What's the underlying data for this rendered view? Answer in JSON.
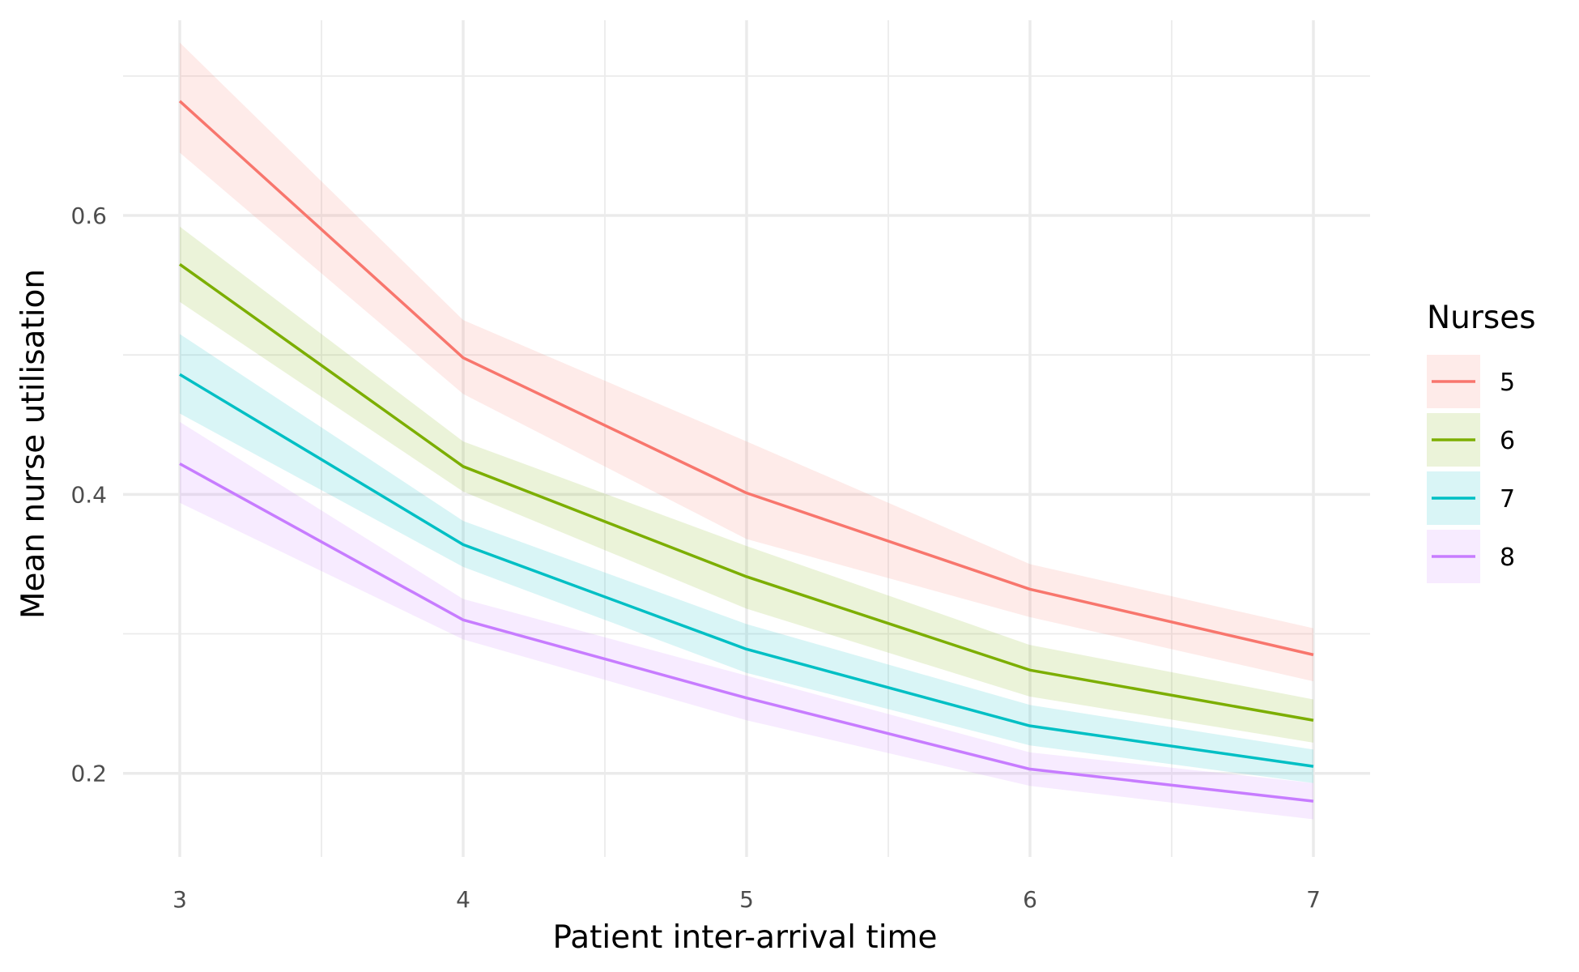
{
  "chart_data": {
    "type": "line",
    "title": "",
    "xlabel": "Patient inter-arrival time",
    "ylabel": "Mean nurse utilisation",
    "x": [
      3,
      4,
      5,
      6,
      7
    ],
    "xticks": [
      3,
      4,
      5,
      6,
      7
    ],
    "yticks": [
      0.2,
      0.4,
      0.6
    ],
    "xlim": [
      2.8,
      7.2
    ],
    "ylim": [
      0.14,
      0.74
    ],
    "grid": true,
    "legend": {
      "title": "Nurses",
      "position": "right"
    },
    "series": [
      {
        "name": "5",
        "color": "#F8766D",
        "values": [
          0.682,
          0.498,
          0.401,
          0.332,
          0.285
        ],
        "lower": [
          0.645,
          0.472,
          0.368,
          0.312,
          0.266
        ],
        "upper": [
          0.724,
          0.525,
          0.438,
          0.35,
          0.304
        ]
      },
      {
        "name": "6",
        "color": "#7CAE00",
        "values": [
          0.565,
          0.42,
          0.341,
          0.274,
          0.238
        ],
        "lower": [
          0.538,
          0.402,
          0.318,
          0.255,
          0.222
        ],
        "upper": [
          0.592,
          0.438,
          0.363,
          0.292,
          0.253
        ]
      },
      {
        "name": "7",
        "color": "#00BFC4",
        "values": [
          0.486,
          0.364,
          0.289,
          0.234,
          0.205
        ],
        "lower": [
          0.458,
          0.348,
          0.272,
          0.22,
          0.193
        ],
        "upper": [
          0.515,
          0.381,
          0.307,
          0.249,
          0.217
        ]
      },
      {
        "name": "8",
        "color": "#C77CFF",
        "values": [
          0.422,
          0.31,
          0.254,
          0.203,
          0.18
        ],
        "lower": [
          0.394,
          0.296,
          0.238,
          0.191,
          0.167
        ],
        "upper": [
          0.452,
          0.325,
          0.27,
          0.215,
          0.193
        ]
      }
    ]
  }
}
